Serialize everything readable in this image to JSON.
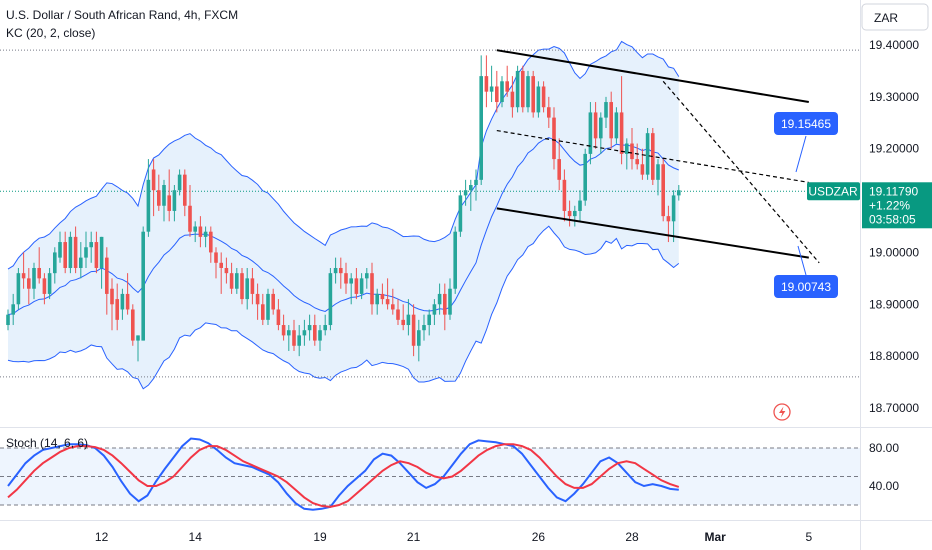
{
  "header": {
    "title": "U.S. Dollar / South African Rand, 4h, FXCM",
    "indicator": "KC (20, 2, close)",
    "currency_button": "ZAR"
  },
  "colors": {
    "up": "#26a69a",
    "down": "#ef5350",
    "band_line": "#2962ff",
    "band_fill": "#e3f0fc",
    "tag_blue": "#2962ff",
    "stoch_k": "#2962ff",
    "stoch_d": "#f23645",
    "trendline": "#000000",
    "last_price": "#089981"
  },
  "icons": {
    "alert": "lightning-icon"
  },
  "chart_data": [
    {
      "type": "candlestick",
      "title": "U.S. Dollar / South African Rand, 4h, FXCM",
      "indicator": "KC (20, 2, close)",
      "ylim": [
        18.66,
        19.44
      ],
      "y_ticks": [
        "19.40000",
        "19.30000",
        "19.20000",
        "19.10000",
        "19.00000",
        "18.90000",
        "18.80000",
        "18.70000"
      ],
      "x_ticks": [
        {
          "label": "12",
          "index": 18
        },
        {
          "label": "14",
          "index": 36
        },
        {
          "label": "19",
          "index": 60
        },
        {
          "label": "21",
          "index": 78
        },
        {
          "label": "26",
          "index": 102
        },
        {
          "label": "28",
          "index": 120
        },
        {
          "label": "Mar",
          "index": 136
        },
        {
          "label": "5",
          "index": 154
        }
      ],
      "candles": [
        [
          18.86,
          18.89,
          18.85,
          18.88
        ],
        [
          18.88,
          18.92,
          18.86,
          18.9
        ],
        [
          18.9,
          18.97,
          18.89,
          18.96
        ],
        [
          18.96,
          19.0,
          18.93,
          18.95
        ],
        [
          18.95,
          18.97,
          18.9,
          18.93
        ],
        [
          18.93,
          18.98,
          18.91,
          18.97
        ],
        [
          18.97,
          19.01,
          18.94,
          18.95
        ],
        [
          18.95,
          18.96,
          18.9,
          18.92
        ],
        [
          18.92,
          18.97,
          18.91,
          18.96
        ],
        [
          18.96,
          19.01,
          18.94,
          19.0
        ],
        [
          18.99,
          19.04,
          18.98,
          19.02
        ],
        [
          19.02,
          19.04,
          18.96,
          18.97
        ],
        [
          18.97,
          19.04,
          18.96,
          19.03
        ],
        [
          19.03,
          19.05,
          18.96,
          18.97
        ],
        [
          18.97,
          19.02,
          18.95,
          18.99
        ],
        [
          18.99,
          19.04,
          18.97,
          19.01
        ],
        [
          19.01,
          19.04,
          18.98,
          19.02
        ],
        [
          19.02,
          19.04,
          18.96,
          18.97
        ],
        [
          18.97,
          19.03,
          18.93,
          19.03
        ],
        [
          18.99,
          19.01,
          18.88,
          18.92
        ],
        [
          18.93,
          18.95,
          18.85,
          18.9
        ],
        [
          18.91,
          18.94,
          18.85,
          18.87
        ],
        [
          18.89,
          18.93,
          18.87,
          18.92
        ],
        [
          18.92,
          18.96,
          18.88,
          18.89
        ],
        [
          18.89,
          18.9,
          18.82,
          18.83
        ],
        [
          18.83,
          18.84,
          18.79,
          18.84
        ],
        [
          18.83,
          19.05,
          18.83,
          19.04
        ],
        [
          19.04,
          19.18,
          19.03,
          19.14
        ],
        [
          19.16,
          19.18,
          19.07,
          19.12
        ],
        [
          19.12,
          19.15,
          19.08,
          19.09
        ],
        [
          19.09,
          19.14,
          19.06,
          19.13
        ],
        [
          19.11,
          19.16,
          19.06,
          19.08
        ],
        [
          19.08,
          19.13,
          19.06,
          19.12
        ],
        [
          19.12,
          19.16,
          19.11,
          19.15
        ],
        [
          19.15,
          19.16,
          19.07,
          19.09
        ],
        [
          19.09,
          19.13,
          19.03,
          19.04
        ],
        [
          19.04,
          19.06,
          19.02,
          19.05
        ],
        [
          19.05,
          19.07,
          19.01,
          19.03
        ],
        [
          19.03,
          19.05,
          19.01,
          19.04
        ],
        [
          19.04,
          19.05,
          18.98,
          19.0
        ],
        [
          19.0,
          19.01,
          18.95,
          18.98
        ],
        [
          18.98,
          19.0,
          18.92,
          18.97
        ],
        [
          18.97,
          18.99,
          18.94,
          18.96
        ],
        [
          18.96,
          18.98,
          18.92,
          18.93
        ],
        [
          18.93,
          18.97,
          18.92,
          18.96
        ],
        [
          18.96,
          18.97,
          18.9,
          18.91
        ],
        [
          18.91,
          18.97,
          18.89,
          18.95
        ],
        [
          18.95,
          18.97,
          18.9,
          18.92
        ],
        [
          18.92,
          18.94,
          18.87,
          18.9
        ],
        [
          18.9,
          18.92,
          18.86,
          18.87
        ],
        [
          18.87,
          18.93,
          18.86,
          18.92
        ],
        [
          18.92,
          18.93,
          18.88,
          18.89
        ],
        [
          18.89,
          18.91,
          18.85,
          18.86
        ],
        [
          18.86,
          18.88,
          18.83,
          18.84
        ],
        [
          18.84,
          18.86,
          18.81,
          18.85
        ],
        [
          18.85,
          18.87,
          18.81,
          18.82
        ],
        [
          18.82,
          18.86,
          18.8,
          18.84
        ],
        [
          18.84,
          18.87,
          18.82,
          18.85
        ],
        [
          18.85,
          18.88,
          18.83,
          18.86
        ],
        [
          18.86,
          18.88,
          18.82,
          18.83
        ],
        [
          18.83,
          18.86,
          18.81,
          18.85
        ],
        [
          18.85,
          18.88,
          18.84,
          18.86
        ],
        [
          18.86,
          18.97,
          18.85,
          18.96
        ],
        [
          18.96,
          18.99,
          18.94,
          18.97
        ],
        [
          18.97,
          18.99,
          18.93,
          18.96
        ],
        [
          18.96,
          18.98,
          18.92,
          18.94
        ],
        [
          18.94,
          18.96,
          18.9,
          18.95
        ],
        [
          18.95,
          18.97,
          18.91,
          18.92
        ],
        [
          18.92,
          18.96,
          18.91,
          18.95
        ],
        [
          18.95,
          18.97,
          18.93,
          18.96
        ],
        [
          18.96,
          18.98,
          18.88,
          18.9
        ],
        [
          18.9,
          18.93,
          18.88,
          18.92
        ],
        [
          18.92,
          18.94,
          18.9,
          18.91
        ],
        [
          18.91,
          18.95,
          18.89,
          18.9
        ],
        [
          18.9,
          18.93,
          18.88,
          18.89
        ],
        [
          18.89,
          18.91,
          18.86,
          18.87
        ],
        [
          18.87,
          18.9,
          18.85,
          18.86
        ],
        [
          18.86,
          18.91,
          18.84,
          18.88
        ],
        [
          18.88,
          18.9,
          18.8,
          18.82
        ],
        [
          18.82,
          18.87,
          18.79,
          18.85
        ],
        [
          18.85,
          18.88,
          18.83,
          18.86
        ],
        [
          18.86,
          18.89,
          18.84,
          18.88
        ],
        [
          18.88,
          18.91,
          18.86,
          18.9
        ],
        [
          18.9,
          18.94,
          18.88,
          18.92
        ],
        [
          18.92,
          18.94,
          18.85,
          18.88
        ],
        [
          18.88,
          18.95,
          18.87,
          18.93
        ],
        [
          18.93,
          19.05,
          18.92,
          19.04
        ],
        [
          19.04,
          19.12,
          19.03,
          19.11
        ],
        [
          19.11,
          19.14,
          19.09,
          19.12
        ],
        [
          19.12,
          19.14,
          19.08,
          19.13
        ],
        [
          19.13,
          19.16,
          19.1,
          19.14
        ],
        [
          19.14,
          19.38,
          19.13,
          19.34
        ],
        [
          19.34,
          19.38,
          19.28,
          19.31
        ],
        [
          19.31,
          19.36,
          19.29,
          19.32
        ],
        [
          19.32,
          19.35,
          19.27,
          19.29
        ],
        [
          19.29,
          19.34,
          19.28,
          19.33
        ],
        [
          19.33,
          19.36,
          19.3,
          19.31
        ],
        [
          19.31,
          19.34,
          19.26,
          19.28
        ],
        [
          19.28,
          19.36,
          19.27,
          19.35
        ],
        [
          19.35,
          19.36,
          19.27,
          19.28
        ],
        [
          19.28,
          19.35,
          19.27,
          19.34
        ],
        [
          19.34,
          19.35,
          19.26,
          19.27
        ],
        [
          19.27,
          19.33,
          19.26,
          19.32
        ],
        [
          19.32,
          19.33,
          19.27,
          19.28
        ],
        [
          19.28,
          19.3,
          19.24,
          19.26
        ],
        [
          19.26,
          19.28,
          19.16,
          19.18
        ],
        [
          19.18,
          19.22,
          19.12,
          19.14
        ],
        [
          19.14,
          19.16,
          19.06,
          19.08
        ],
        [
          19.08,
          19.1,
          19.05,
          19.07
        ],
        [
          19.07,
          19.09,
          19.05,
          19.08
        ],
        [
          19.08,
          19.12,
          19.06,
          19.1
        ],
        [
          19.1,
          19.2,
          19.09,
          19.19
        ],
        [
          19.19,
          19.29,
          19.17,
          19.27
        ],
        [
          19.27,
          19.29,
          19.2,
          19.22
        ],
        [
          19.22,
          19.27,
          19.19,
          19.26
        ],
        [
          19.26,
          19.3,
          19.24,
          19.29
        ],
        [
          19.29,
          19.31,
          19.2,
          19.22
        ],
        [
          19.22,
          19.28,
          19.21,
          19.27
        ],
        [
          19.27,
          19.34,
          19.17,
          19.19
        ],
        [
          19.19,
          19.22,
          19.16,
          19.21
        ],
        [
          19.21,
          19.24,
          19.16,
          19.18
        ],
        [
          19.18,
          19.21,
          19.16,
          19.17
        ],
        [
          19.17,
          19.2,
          19.14,
          19.15
        ],
        [
          19.15,
          19.24,
          19.14,
          19.23
        ],
        [
          19.23,
          19.24,
          19.13,
          19.14
        ],
        [
          19.14,
          19.18,
          19.11,
          19.17
        ],
        [
          19.17,
          19.18,
          19.06,
          19.07
        ],
        [
          19.07,
          19.09,
          19.02,
          19.06
        ],
        [
          19.06,
          19.12,
          19.02,
          19.11
        ],
        [
          19.11,
          19.13,
          19.1,
          19.12
        ]
      ],
      "annotations": [
        {
          "label": "19.15465",
          "price": 19.15465
        },
        {
          "label": "19.00743",
          "price": 19.00743
        }
      ],
      "last_price": {
        "symbol": "USDZAR",
        "price": "19.11790",
        "change": "+1.22%",
        "countdown": "03:58:05",
        "value": 19.1179
      },
      "dotted_lines": [
        19.39,
        19.1179,
        18.76
      ],
      "channel": {
        "upper": [
          [
            94,
            19.39
          ],
          [
            154,
            19.29
          ]
        ],
        "lower": [
          [
            94,
            19.085
          ],
          [
            154,
            18.99
          ]
        ],
        "mid_dashed": [
          [
            94,
            19.235
          ],
          [
            154,
            19.135
          ]
        ],
        "dashed_down": [
          [
            126,
            19.33
          ],
          [
            156,
            18.98
          ]
        ]
      }
    },
    {
      "type": "line",
      "title": "Stoch (14, 6, 6)",
      "ylim": [
        10,
        100
      ],
      "y_ticks": [
        "80.00",
        "40.00"
      ],
      "levels": [
        80,
        50,
        20
      ],
      "series": [
        {
          "values": [
            40,
            52,
            64,
            72,
            78,
            80,
            82,
            84,
            84,
            83,
            80,
            72,
            60,
            45,
            32,
            24,
            30,
            45,
            58,
            70,
            82,
            90,
            89,
            85,
            78,
            70,
            64,
            62,
            60,
            56,
            52,
            44,
            32,
            22,
            16,
            15,
            16,
            18,
            30,
            40,
            48,
            56,
            68,
            74,
            72,
            64,
            54,
            44,
            38,
            42,
            50,
            62,
            74,
            84,
            88,
            87,
            86,
            84,
            82,
            74,
            62,
            50,
            38,
            28,
            24,
            32,
            42,
            54,
            66,
            70,
            64,
            54,
            44,
            40,
            42,
            40,
            37,
            36
          ]
        },
        {
          "values": [
            28,
            36,
            46,
            56,
            64,
            70,
            76,
            80,
            82,
            82,
            81,
            78,
            72,
            64,
            55,
            46,
            40,
            40,
            44,
            50,
            60,
            70,
            78,
            82,
            82,
            78,
            72,
            66,
            62,
            58,
            54,
            50,
            44,
            36,
            28,
            22,
            19,
            18,
            20,
            24,
            32,
            40,
            48,
            56,
            62,
            66,
            64,
            60,
            54,
            50,
            48,
            50,
            56,
            64,
            72,
            78,
            82,
            84,
            84,
            82,
            78,
            70,
            60,
            50,
            42,
            38,
            38,
            42,
            50,
            58,
            64,
            66,
            64,
            58,
            52,
            46,
            42,
            39
          ]
        }
      ]
    }
  ],
  "x_axis_labels": [
    "12",
    "14",
    "19",
    "21",
    "26",
    "28",
    "Mar",
    "5"
  ]
}
